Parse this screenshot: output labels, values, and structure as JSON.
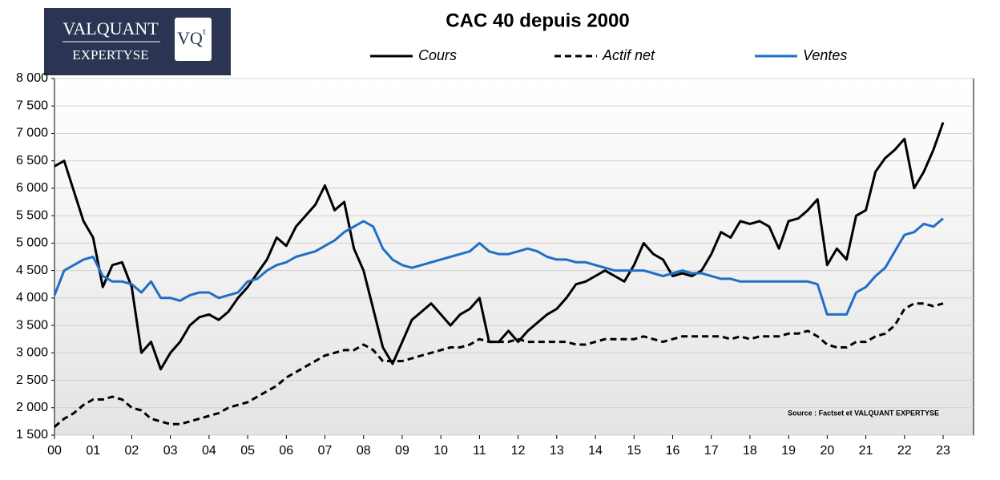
{
  "logo": {
    "line1": "VALQUANT",
    "line2": "EXPERTYSE",
    "mark": "VQ",
    "mark_sup": "t"
  },
  "chart_data": {
    "type": "line",
    "title": "CAC 40 depuis 2000",
    "source": "Source :  Factset et VALQUANT  EXPERTYSE",
    "xlim": [
      0,
      23
    ],
    "ylim": [
      1500,
      8000
    ],
    "xticks": [
      {
        "value": 0,
        "label": "00"
      },
      {
        "value": 1,
        "label": "01"
      },
      {
        "value": 2,
        "label": "02"
      },
      {
        "value": 3,
        "label": "03"
      },
      {
        "value": 4,
        "label": "04"
      },
      {
        "value": 5,
        "label": "05"
      },
      {
        "value": 6,
        "label": "06"
      },
      {
        "value": 7,
        "label": "07"
      },
      {
        "value": 8,
        "label": "08"
      },
      {
        "value": 9,
        "label": "09"
      },
      {
        "value": 10,
        "label": "10"
      },
      {
        "value": 11,
        "label": "11"
      },
      {
        "value": 12,
        "label": "12"
      },
      {
        "value": 13,
        "label": "13"
      },
      {
        "value": 14,
        "label": "14"
      },
      {
        "value": 15,
        "label": "15"
      },
      {
        "value": 16,
        "label": "16"
      },
      {
        "value": 17,
        "label": "17"
      },
      {
        "value": 18,
        "label": "18"
      },
      {
        "value": 19,
        "label": "19"
      },
      {
        "value": 20,
        "label": "20"
      },
      {
        "value": 21,
        "label": "21"
      },
      {
        "value": 22,
        "label": "22"
      },
      {
        "value": 23,
        "label": "23"
      }
    ],
    "yticks": [
      {
        "value": 1500,
        "label": "1 500"
      },
      {
        "value": 2000,
        "label": "2 000"
      },
      {
        "value": 2500,
        "label": "2 500"
      },
      {
        "value": 3000,
        "label": "3 000"
      },
      {
        "value": 3500,
        "label": "3 500"
      },
      {
        "value": 4000,
        "label": "4 000"
      },
      {
        "value": 4500,
        "label": "4 500"
      },
      {
        "value": 5000,
        "label": "5 000"
      },
      {
        "value": 5500,
        "label": "5 500"
      },
      {
        "value": 6000,
        "label": "6 000"
      },
      {
        "value": 6500,
        "label": "6 500"
      },
      {
        "value": 7000,
        "label": "7 000"
      },
      {
        "value": 7500,
        "label": "7 500"
      },
      {
        "value": 8000,
        "label": "8 000"
      }
    ],
    "grid": true,
    "x": [
      0,
      0.25,
      0.5,
      0.75,
      1,
      1.25,
      1.5,
      1.75,
      2,
      2.25,
      2.5,
      2.75,
      3,
      3.25,
      3.5,
      3.75,
      4,
      4.25,
      4.5,
      4.75,
      5,
      5.25,
      5.5,
      5.75,
      6,
      6.25,
      6.5,
      6.75,
      7,
      7.25,
      7.5,
      7.75,
      8,
      8.25,
      8.5,
      8.75,
      9,
      9.25,
      9.5,
      9.75,
      10,
      10.25,
      10.5,
      10.75,
      11,
      11.25,
      11.5,
      11.75,
      12,
      12.25,
      12.5,
      12.75,
      13,
      13.25,
      13.5,
      13.75,
      14,
      14.25,
      14.5,
      14.75,
      15,
      15.25,
      15.5,
      15.75,
      16,
      16.25,
      16.5,
      16.75,
      17,
      17.25,
      17.5,
      17.75,
      18,
      18.25,
      18.5,
      18.75,
      19,
      19.25,
      19.5,
      19.75,
      20,
      20.25,
      20.5,
      20.75,
      21,
      21.25,
      21.5,
      21.75,
      22,
      22.25,
      22.5,
      22.75,
      23
    ],
    "series": [
      {
        "name": "Cours",
        "color": "#000000",
        "line_style": "solid",
        "values": [
          6400,
          6500,
          5950,
          5400,
          5100,
          4200,
          4600,
          4650,
          4200,
          3000,
          3200,
          2700,
          3000,
          3200,
          3500,
          3650,
          3700,
          3600,
          3750,
          4000,
          4200,
          4450,
          4700,
          5100,
          4950,
          5300,
          5500,
          5700,
          6050,
          5600,
          5750,
          4900,
          4500,
          3800,
          3100,
          2800,
          3200,
          3600,
          3750,
          3900,
          3700,
          3500,
          3700,
          3800,
          4000,
          3200,
          3200,
          3400,
          3200,
          3400,
          3550,
          3700,
          3800,
          4000,
          4250,
          4300,
          4400,
          4500,
          4400,
          4300,
          4600,
          5000,
          4800,
          4700,
          4400,
          4450,
          4400,
          4500,
          4800,
          5200,
          5100,
          5400,
          5350,
          5400,
          5300,
          4900,
          5400,
          5450,
          5600,
          5800,
          4600,
          4900,
          4700,
          5500,
          5600,
          6300,
          6550,
          6700,
          6900,
          6000,
          6300,
          6700,
          7200
        ]
      },
      {
        "name": "Actif net",
        "color": "#000000",
        "line_style": "dashed",
        "values": [
          1650,
          1800,
          1900,
          2050,
          2150,
          2150,
          2200,
          2150,
          2000,
          1950,
          1800,
          1750,
          1700,
          1700,
          1750,
          1800,
          1850,
          1900,
          2000,
          2050,
          2100,
          2200,
          2300,
          2400,
          2550,
          2650,
          2750,
          2850,
          2950,
          3000,
          3050,
          3050,
          3150,
          3050,
          2850,
          2850,
          2850,
          2900,
          2950,
          3000,
          3050,
          3100,
          3100,
          3150,
          3250,
          3200,
          3200,
          3200,
          3250,
          3200,
          3200,
          3200,
          3200,
          3200,
          3150,
          3150,
          3200,
          3250,
          3250,
          3250,
          3250,
          3300,
          3250,
          3200,
          3250,
          3300,
          3300,
          3300,
          3300,
          3300,
          3250,
          3300,
          3250,
          3300,
          3300,
          3300,
          3350,
          3350,
          3400,
          3300,
          3150,
          3100,
          3100,
          3200,
          3200,
          3300,
          3350,
          3500,
          3800,
          3900,
          3900,
          3850,
          3900
        ]
      },
      {
        "name": "Ventes",
        "color": "#1f6fc5",
        "line_style": "solid",
        "values": [
          4050,
          4500,
          4600,
          4700,
          4750,
          4400,
          4300,
          4300,
          4250,
          4100,
          4300,
          4000,
          4000,
          3950,
          4050,
          4100,
          4100,
          4000,
          4050,
          4100,
          4300,
          4350,
          4500,
          4600,
          4650,
          4750,
          4800,
          4850,
          4950,
          5050,
          5200,
          5300,
          5400,
          5300,
          4900,
          4700,
          4600,
          4550,
          4600,
          4650,
          4700,
          4750,
          4800,
          4850,
          5000,
          4850,
          4800,
          4800,
          4850,
          4900,
          4850,
          4750,
          4700,
          4700,
          4650,
          4650,
          4600,
          4550,
          4500,
          4500,
          4500,
          4500,
          4450,
          4400,
          4450,
          4500,
          4450,
          4450,
          4400,
          4350,
          4350,
          4300,
          4300,
          4300,
          4300,
          4300,
          4300,
          4300,
          4300,
          4250,
          3700,
          3700,
          3700,
          4100,
          4200,
          4400,
          4550,
          4850,
          5150,
          5200,
          5350,
          5300,
          5450
        ]
      }
    ]
  }
}
